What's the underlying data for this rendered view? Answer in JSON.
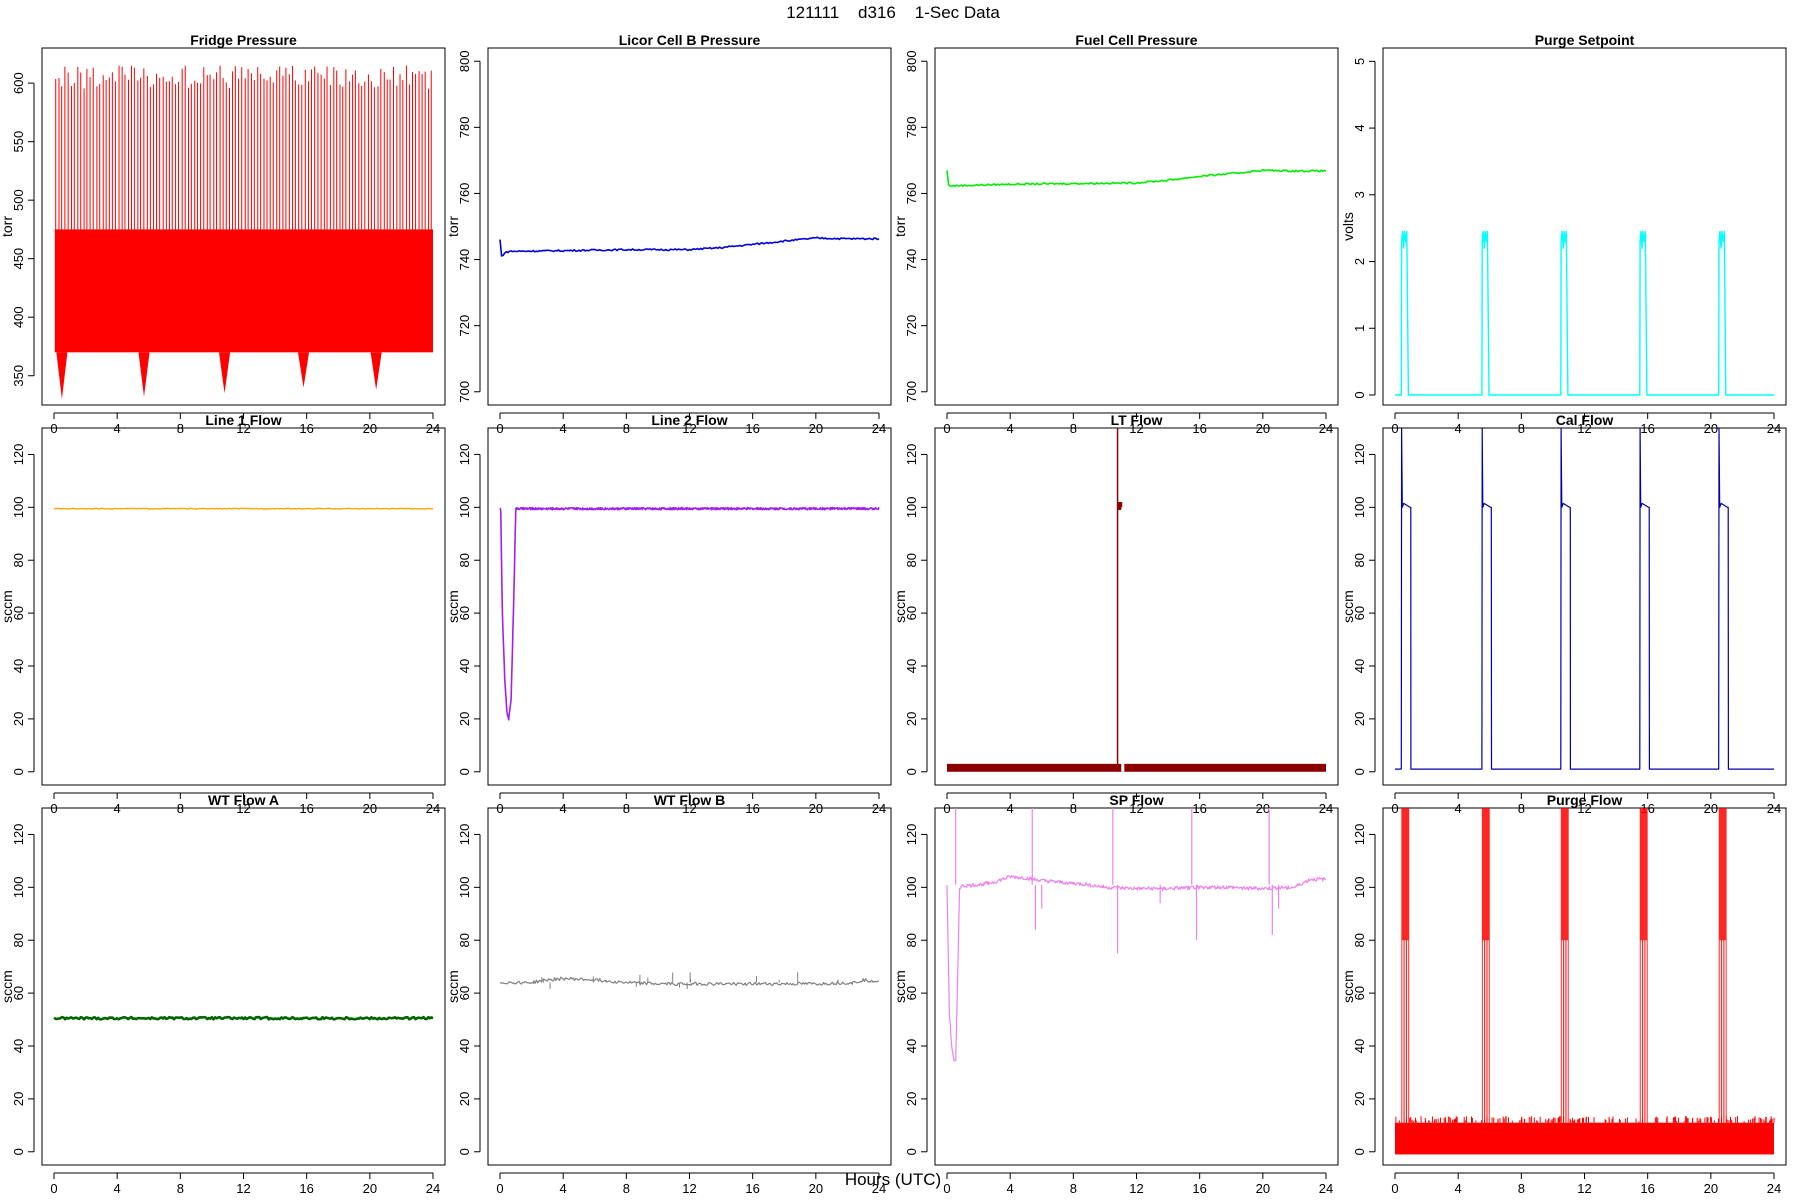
{
  "figure": {
    "title": "121111    d316    1-Sec Data",
    "xlabel": "Hours (UTC)"
  },
  "chart_data": [
    {
      "name": "fridge",
      "type": "line",
      "title": "Fridge Pressure",
      "ylabel": "torr",
      "color": "#ff0000",
      "xlim": [
        0,
        24
      ],
      "ylim": [
        325,
        630
      ],
      "xticks": [
        0,
        4,
        8,
        12,
        16,
        20,
        24
      ],
      "yticks": [
        350,
        400,
        450,
        500,
        550,
        600
      ],
      "spikes_max": 615,
      "band_top": 475,
      "band_bottom": 370,
      "dips": [
        [
          0.5,
          330
        ],
        [
          5.7,
          332
        ],
        [
          10.8,
          335
        ],
        [
          15.8,
          340
        ],
        [
          20.4,
          338
        ]
      ]
    },
    {
      "name": "licor",
      "type": "line",
      "title": "Licor Cell B Pressure",
      "ylabel": "torr",
      "color": "#0000dd",
      "xlim": [
        0,
        24
      ],
      "ylim": [
        696,
        804
      ],
      "xticks": [
        0,
        4,
        8,
        12,
        16,
        20,
        24
      ],
      "yticks": [
        700,
        720,
        740,
        760,
        780,
        800
      ],
      "x": [
        0,
        0.1,
        0.3,
        0.6,
        1,
        4,
        8,
        12,
        14,
        16,
        18,
        20,
        22,
        24
      ],
      "y": [
        746,
        741,
        742,
        742.5,
        742.5,
        742.7,
        743,
        743,
        743.6,
        744.6,
        745.6,
        746.5,
        746.3,
        746.3
      ]
    },
    {
      "name": "fuel",
      "type": "line",
      "title": "Fuel Cell Pressure",
      "ylabel": "torr",
      "color": "#00ee00",
      "xlim": [
        0,
        24
      ],
      "ylim": [
        696,
        804
      ],
      "xticks": [
        0,
        4,
        8,
        12,
        16,
        20,
        24
      ],
      "yticks": [
        700,
        720,
        740,
        760,
        780,
        800
      ],
      "x": [
        0,
        0.1,
        0.3,
        1,
        4,
        8,
        12,
        14,
        16,
        18,
        20,
        22,
        24
      ],
      "y": [
        767,
        762.5,
        762.3,
        762.4,
        762.8,
        763,
        763.2,
        764,
        765.2,
        766,
        767,
        766.8,
        766.8
      ]
    },
    {
      "name": "purge_setpoint",
      "type": "line",
      "title": "Purge Setpoint",
      "ylabel": "volts",
      "color": "#00ffff",
      "xlim": [
        0,
        24
      ],
      "ylim": [
        -0.15,
        5.2
      ],
      "xticks": [
        0,
        4,
        8,
        12,
        16,
        20,
        24
      ],
      "yticks": [
        0,
        1,
        2,
        3,
        4,
        5
      ],
      "base": 0,
      "peak": 2.45,
      "pulses": [
        0.4,
        5.5,
        10.5,
        15.5,
        20.5
      ],
      "pulse_width": 0.45
    },
    {
      "name": "line1",
      "type": "line",
      "title": "Line 1 Flow",
      "ylabel": "sccm",
      "color": "#ffa500",
      "xlim": [
        0,
        24
      ],
      "ylim": [
        -5,
        130
      ],
      "xticks": [
        0,
        4,
        8,
        12,
        16,
        20,
        24
      ],
      "yticks": [
        0,
        20,
        40,
        60,
        80,
        100,
        120
      ],
      "x": [
        0,
        24
      ],
      "y": [
        99.5,
        99.5
      ]
    },
    {
      "name": "line2",
      "type": "line",
      "title": "Line 2 Flow",
      "ylabel": "sccm",
      "color": "#a020f0",
      "xlim": [
        0,
        24
      ],
      "ylim": [
        -5,
        130
      ],
      "xticks": [
        0,
        4,
        8,
        12,
        16,
        20,
        24
      ],
      "yticks": [
        0,
        20,
        40,
        60,
        80,
        100,
        120
      ],
      "x": [
        0,
        0.05,
        0.15,
        0.3,
        0.45,
        0.55,
        0.7,
        0.85,
        1,
        24
      ],
      "y": [
        100,
        98,
        60,
        35,
        22,
        20,
        27,
        60,
        99.5,
        99.5
      ]
    },
    {
      "name": "lt",
      "type": "line",
      "title": "LT Flow",
      "ylabel": "sccm",
      "color": "#8b0000",
      "xlim": [
        0,
        24
      ],
      "ylim": [
        -5,
        130
      ],
      "xticks": [
        0,
        4,
        8,
        12,
        16,
        20,
        24
      ],
      "yticks": [
        0,
        20,
        40,
        60,
        80,
        100,
        120
      ],
      "band_low": 0,
      "band_high": 3,
      "spike_x": 10.8,
      "spike_top": 130,
      "plateau": [
        10.8,
        11.1,
        99,
        102
      ]
    },
    {
      "name": "cal",
      "type": "line",
      "title": "Cal Flow",
      "ylabel": "sccm",
      "color": "#0000aa",
      "xlim": [
        0,
        24
      ],
      "ylim": [
        -5,
        130
      ],
      "xticks": [
        0,
        4,
        8,
        12,
        16,
        20,
        24
      ],
      "yticks": [
        0,
        20,
        40,
        60,
        80,
        100,
        120
      ],
      "base": 1,
      "level": 100,
      "peak": 130,
      "pulses": [
        0.4,
        5.5,
        10.5,
        15.5,
        20.5
      ],
      "pulse_width": 0.6
    },
    {
      "name": "wta",
      "type": "line",
      "title": "WT Flow A",
      "ylabel": "sccm",
      "color": "#006400",
      "xlim": [
        0,
        24
      ],
      "ylim": [
        -5,
        130
      ],
      "xticks": [
        0,
        4,
        8,
        12,
        16,
        20,
        24
      ],
      "yticks": [
        0,
        20,
        40,
        60,
        80,
        100,
        120
      ],
      "x": [
        0,
        24
      ],
      "y": [
        50.5,
        50.5
      ]
    },
    {
      "name": "wtb",
      "type": "line",
      "title": "WT Flow B",
      "ylabel": "sccm",
      "color": "#808080",
      "xlim": [
        0,
        24
      ],
      "ylim": [
        -5,
        130
      ],
      "xticks": [
        0,
        4,
        8,
        12,
        16,
        20,
        24
      ],
      "yticks": [
        0,
        20,
        40,
        60,
        80,
        100,
        120
      ],
      "x": [
        0,
        2,
        3,
        4,
        6,
        8,
        10,
        12,
        16,
        20,
        22.5,
        23,
        24
      ],
      "y": [
        64,
        64,
        65,
        65.5,
        65,
        64,
        63.5,
        63.5,
        63.5,
        63.5,
        64,
        65,
        64.5
      ]
    },
    {
      "name": "sp",
      "type": "line",
      "title": "SP Flow",
      "ylabel": "sccm",
      "color": "#ee82ee",
      "xlim": [
        0,
        24
      ],
      "ylim": [
        -5,
        130
      ],
      "xticks": [
        0,
        4,
        8,
        12,
        16,
        20,
        24
      ],
      "yticks": [
        0,
        20,
        40,
        60,
        80,
        100,
        120
      ],
      "x": [
        0,
        0.15,
        0.3,
        0.45,
        0.55,
        0.65,
        0.8,
        1,
        2,
        3,
        4,
        5,
        6,
        7,
        8,
        9,
        10,
        12,
        14,
        16,
        18,
        20,
        21,
        22,
        22.5,
        23,
        24
      ],
      "y": [
        101,
        52,
        40,
        34,
        34,
        60,
        100,
        100.5,
        101,
        102,
        104,
        103.5,
        102.5,
        102,
        101.5,
        101,
        100,
        99.5,
        99.5,
        100,
        100,
        99.5,
        99.8,
        100,
        101.5,
        103,
        103
      ]
    },
    {
      "name": "purge_flow",
      "type": "line",
      "title": "Purge Flow",
      "ylabel": "sccm",
      "color": "#ff0000",
      "xlim": [
        0,
        24
      ],
      "ylim": [
        -5,
        130
      ],
      "xticks": [
        0,
        4,
        8,
        12,
        16,
        20,
        24
      ],
      "yticks": [
        0,
        20,
        40,
        60,
        80,
        100,
        120
      ],
      "band_low": -1,
      "band_high": 11,
      "peak": 130,
      "pulses": [
        0.4,
        5.5,
        10.5,
        15.5,
        20.5
      ],
      "pulse_width": 0.5
    }
  ]
}
